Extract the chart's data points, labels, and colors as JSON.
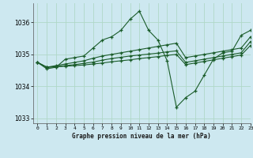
{
  "title": "Graphe pression niveau de la mer (hPa)",
  "background_color": "#cde8f0",
  "grid_color": "#b0d8c8",
  "line_color": "#1a5c2a",
  "xlim": [
    -0.5,
    23
  ],
  "ylim": [
    1032.85,
    1036.6
  ],
  "yticks": [
    1033,
    1034,
    1035,
    1036
  ],
  "xticks": [
    0,
    1,
    2,
    3,
    4,
    5,
    6,
    7,
    8,
    9,
    10,
    11,
    12,
    13,
    14,
    15,
    16,
    17,
    18,
    19,
    20,
    21,
    22,
    23
  ],
  "series": [
    {
      "x": [
        0,
        1,
        2,
        3,
        4,
        5,
        6,
        7,
        8,
        9,
        10,
        11,
        12,
        13,
        14,
        15,
        16,
        17,
        18,
        19,
        20,
        21,
        22,
        23
      ],
      "y": [
        1034.75,
        1034.55,
        1034.6,
        1034.85,
        1034.9,
        1034.95,
        1035.2,
        1035.45,
        1035.55,
        1035.75,
        1036.1,
        1036.35,
        1035.75,
        1035.45,
        1034.8,
        1033.35,
        1033.65,
        1033.85,
        1034.35,
        1034.85,
        1035.05,
        1035.1,
        1035.6,
        1035.75
      ]
    },
    {
      "x": [
        0,
        1,
        2,
        3,
        4,
        5,
        6,
        7,
        8,
        9,
        10,
        11,
        12,
        13,
        14,
        15,
        16,
        17,
        18,
        19,
        20,
        21,
        22,
        23
      ],
      "y": [
        1034.75,
        1034.6,
        1034.65,
        1034.7,
        1034.75,
        1034.8,
        1034.88,
        1034.95,
        1035.0,
        1035.05,
        1035.1,
        1035.15,
        1035.2,
        1035.25,
        1035.3,
        1035.35,
        1034.9,
        1034.95,
        1035.0,
        1035.05,
        1035.1,
        1035.15,
        1035.2,
        1035.55
      ]
    },
    {
      "x": [
        0,
        1,
        2,
        3,
        4,
        5,
        6,
        7,
        8,
        9,
        10,
        11,
        12,
        13,
        14,
        15,
        16,
        17,
        18,
        19,
        20,
        21,
        22,
        23
      ],
      "y": [
        1034.75,
        1034.6,
        1034.62,
        1034.65,
        1034.68,
        1034.72,
        1034.76,
        1034.82,
        1034.87,
        1034.91,
        1034.95,
        1034.98,
        1035.01,
        1035.04,
        1035.08,
        1035.11,
        1034.75,
        1034.8,
        1034.85,
        1034.9,
        1034.95,
        1035.0,
        1035.05,
        1035.4
      ]
    },
    {
      "x": [
        0,
        1,
        2,
        3,
        4,
        5,
        6,
        7,
        8,
        9,
        10,
        11,
        12,
        13,
        14,
        15,
        16,
        17,
        18,
        19,
        20,
        21,
        22,
        23
      ],
      "y": [
        1034.75,
        1034.6,
        1034.61,
        1034.63,
        1034.65,
        1034.67,
        1034.7,
        1034.73,
        1034.77,
        1034.8,
        1034.83,
        1034.87,
        1034.9,
        1034.93,
        1034.97,
        1035.0,
        1034.68,
        1034.73,
        1034.78,
        1034.83,
        1034.88,
        1034.93,
        1034.98,
        1035.28
      ]
    }
  ]
}
